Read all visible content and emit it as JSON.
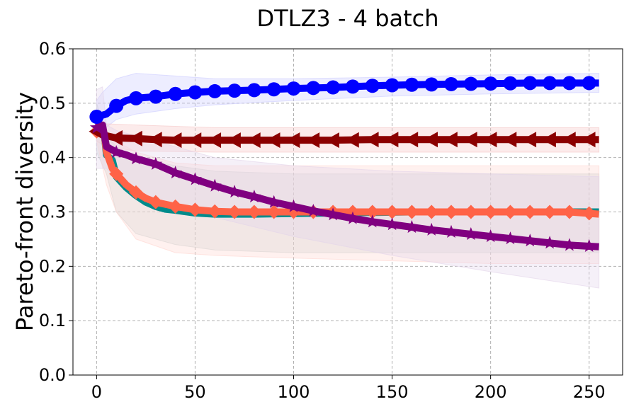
{
  "chart_data": {
    "type": "line",
    "title": "DTLZ3 - 4 batch",
    "xlabel": "",
    "ylabel": "Pareto-front diversity",
    "xlim": [
      -12,
      267
    ],
    "ylim": [
      0.0,
      0.6
    ],
    "xticks": [
      0,
      50,
      100,
      150,
      200,
      250
    ],
    "yticks": [
      0.0,
      0.1,
      0.2,
      0.3,
      0.4,
      0.5,
      0.6
    ],
    "grid": true,
    "x_max": 255,
    "series": [
      {
        "name": "blue",
        "color": "#0000ff",
        "marker": "circle",
        "band_color": "#ccccff",
        "points": [
          [
            0,
            0.475
          ],
          [
            5,
            0.48
          ],
          [
            10,
            0.495
          ],
          [
            15,
            0.505
          ],
          [
            20,
            0.509
          ],
          [
            30,
            0.512
          ],
          [
            40,
            0.517
          ],
          [
            50,
            0.52
          ],
          [
            60,
            0.522
          ],
          [
            80,
            0.524
          ],
          [
            100,
            0.527
          ],
          [
            120,
            0.529
          ],
          [
            140,
            0.532
          ],
          [
            160,
            0.534
          ],
          [
            180,
            0.535
          ],
          [
            200,
            0.536
          ],
          [
            220,
            0.537
          ],
          [
            240,
            0.537
          ],
          [
            255,
            0.537
          ]
        ],
        "band_upper": [
          [
            0,
            0.505
          ],
          [
            3,
            0.52
          ],
          [
            10,
            0.545
          ],
          [
            15,
            0.55
          ],
          [
            20,
            0.555
          ],
          [
            40,
            0.55
          ],
          [
            60,
            0.545
          ],
          [
            100,
            0.545
          ],
          [
            150,
            0.548
          ],
          [
            200,
            0.552
          ],
          [
            255,
            0.555
          ]
        ],
        "band_lower": [
          [
            0,
            0.44
          ],
          [
            3,
            0.45
          ],
          [
            10,
            0.47
          ],
          [
            20,
            0.48
          ],
          [
            40,
            0.49
          ],
          [
            60,
            0.497
          ],
          [
            100,
            0.505
          ],
          [
            150,
            0.513
          ],
          [
            200,
            0.517
          ],
          [
            255,
            0.52
          ]
        ]
      },
      {
        "name": "darkred",
        "color": "#8b0000",
        "marker": "triangle-left",
        "band_color": "#f5c6c6",
        "points": [
          [
            0,
            0.448
          ],
          [
            5,
            0.44
          ],
          [
            10,
            0.436
          ],
          [
            20,
            0.435
          ],
          [
            30,
            0.433
          ],
          [
            40,
            0.432
          ],
          [
            60,
            0.432
          ],
          [
            80,
            0.432
          ],
          [
            100,
            0.432
          ],
          [
            120,
            0.432
          ],
          [
            140,
            0.433
          ],
          [
            160,
            0.433
          ],
          [
            180,
            0.433
          ],
          [
            200,
            0.433
          ],
          [
            220,
            0.433
          ],
          [
            240,
            0.433
          ],
          [
            255,
            0.433
          ]
        ],
        "band_upper": [
          [
            0,
            0.46
          ],
          [
            5,
            0.462
          ],
          [
            20,
            0.46
          ],
          [
            60,
            0.455
          ],
          [
            100,
            0.455
          ],
          [
            150,
            0.455
          ],
          [
            200,
            0.455
          ],
          [
            255,
            0.455
          ]
        ],
        "band_lower": [
          [
            0,
            0.43
          ],
          [
            5,
            0.42
          ],
          [
            20,
            0.412
          ],
          [
            60,
            0.41
          ],
          [
            100,
            0.41
          ],
          [
            150,
            0.41
          ],
          [
            200,
            0.41
          ],
          [
            255,
            0.41
          ]
        ]
      },
      {
        "name": "teal",
        "color": "#008b8b",
        "marker": "none",
        "band_color": "#c8d4d4",
        "points": [
          [
            0,
            0.448
          ],
          [
            4,
            0.44
          ],
          [
            5,
            0.405
          ],
          [
            8,
            0.395
          ],
          [
            10,
            0.365
          ],
          [
            15,
            0.345
          ],
          [
            20,
            0.33
          ],
          [
            25,
            0.318
          ],
          [
            30,
            0.31
          ],
          [
            35,
            0.305
          ],
          [
            40,
            0.303
          ],
          [
            50,
            0.298
          ],
          [
            60,
            0.296
          ],
          [
            80,
            0.296
          ],
          [
            100,
            0.297
          ],
          [
            120,
            0.298
          ],
          [
            140,
            0.299
          ],
          [
            160,
            0.3
          ],
          [
            180,
            0.3
          ],
          [
            200,
            0.3
          ],
          [
            220,
            0.3
          ],
          [
            240,
            0.3
          ],
          [
            255,
            0.3
          ]
        ],
        "band_upper": [
          [
            0,
            0.5
          ],
          [
            5,
            0.44
          ],
          [
            10,
            0.42
          ],
          [
            20,
            0.4
          ],
          [
            40,
            0.385
          ],
          [
            60,
            0.375
          ],
          [
            100,
            0.37
          ],
          [
            150,
            0.37
          ],
          [
            200,
            0.37
          ],
          [
            255,
            0.37
          ]
        ],
        "band_lower": [
          [
            0,
            0.41
          ],
          [
            5,
            0.37
          ],
          [
            10,
            0.3
          ],
          [
            20,
            0.26
          ],
          [
            40,
            0.24
          ],
          [
            60,
            0.23
          ],
          [
            100,
            0.225
          ],
          [
            150,
            0.225
          ],
          [
            200,
            0.225
          ],
          [
            255,
            0.225
          ]
        ]
      },
      {
        "name": "coral",
        "color": "#ff6347",
        "marker": "diamond",
        "band_color": "#ffd6d0",
        "points": [
          [
            0,
            0.448
          ],
          [
            4,
            0.44
          ],
          [
            5,
            0.41
          ],
          [
            8,
            0.38
          ],
          [
            10,
            0.37
          ],
          [
            15,
            0.35
          ],
          [
            20,
            0.336
          ],
          [
            25,
            0.325
          ],
          [
            30,
            0.318
          ],
          [
            35,
            0.314
          ],
          [
            40,
            0.31
          ],
          [
            45,
            0.307
          ],
          [
            50,
            0.304
          ],
          [
            60,
            0.301
          ],
          [
            70,
            0.3
          ],
          [
            80,
            0.3
          ],
          [
            100,
            0.3
          ],
          [
            120,
            0.3
          ],
          [
            140,
            0.3
          ],
          [
            160,
            0.3
          ],
          [
            180,
            0.3
          ],
          [
            200,
            0.3
          ],
          [
            220,
            0.3
          ],
          [
            240,
            0.3
          ],
          [
            255,
            0.296
          ]
        ],
        "band_upper": [
          [
            0,
            0.46
          ],
          [
            5,
            0.45
          ],
          [
            10,
            0.43
          ],
          [
            20,
            0.41
          ],
          [
            40,
            0.39
          ],
          [
            60,
            0.385
          ],
          [
            100,
            0.385
          ],
          [
            150,
            0.385
          ],
          [
            200,
            0.385
          ],
          [
            255,
            0.385
          ]
        ],
        "band_lower": [
          [
            0,
            0.43
          ],
          [
            5,
            0.35
          ],
          [
            10,
            0.3
          ],
          [
            20,
            0.25
          ],
          [
            40,
            0.225
          ],
          [
            60,
            0.22
          ],
          [
            100,
            0.215
          ],
          [
            150,
            0.21
          ],
          [
            200,
            0.205
          ],
          [
            255,
            0.205
          ]
        ]
      },
      {
        "name": "purple",
        "color": "#800080",
        "marker": "star",
        "band_color": "#e2d4ea",
        "points": [
          [
            0,
            0.455
          ],
          [
            3,
            0.46
          ],
          [
            5,
            0.42
          ],
          [
            10,
            0.41
          ],
          [
            15,
            0.405
          ],
          [
            20,
            0.398
          ],
          [
            25,
            0.393
          ],
          [
            30,
            0.388
          ],
          [
            35,
            0.38
          ],
          [
            40,
            0.372
          ],
          [
            50,
            0.36
          ],
          [
            60,
            0.348
          ],
          [
            70,
            0.337
          ],
          [
            80,
            0.328
          ],
          [
            90,
            0.318
          ],
          [
            100,
            0.31
          ],
          [
            110,
            0.302
          ],
          [
            120,
            0.295
          ],
          [
            130,
            0.288
          ],
          [
            140,
            0.282
          ],
          [
            150,
            0.277
          ],
          [
            160,
            0.272
          ],
          [
            170,
            0.267
          ],
          [
            180,
            0.263
          ],
          [
            190,
            0.259
          ],
          [
            200,
            0.255
          ],
          [
            210,
            0.251
          ],
          [
            220,
            0.247
          ],
          [
            230,
            0.243
          ],
          [
            240,
            0.239
          ],
          [
            255,
            0.236
          ]
        ],
        "band_upper": [
          [
            0,
            0.525
          ],
          [
            3,
            0.53
          ],
          [
            5,
            0.46
          ],
          [
            10,
            0.45
          ],
          [
            20,
            0.44
          ],
          [
            40,
            0.42
          ],
          [
            60,
            0.4
          ],
          [
            100,
            0.385
          ],
          [
            150,
            0.375
          ],
          [
            200,
            0.37
          ],
          [
            255,
            0.365
          ]
        ],
        "band_lower": [
          [
            0,
            0.38
          ],
          [
            5,
            0.38
          ],
          [
            10,
            0.36
          ],
          [
            20,
            0.34
          ],
          [
            40,
            0.31
          ],
          [
            60,
            0.29
          ],
          [
            100,
            0.255
          ],
          [
            150,
            0.22
          ],
          [
            200,
            0.19
          ],
          [
            255,
            0.16
          ]
        ]
      }
    ]
  }
}
